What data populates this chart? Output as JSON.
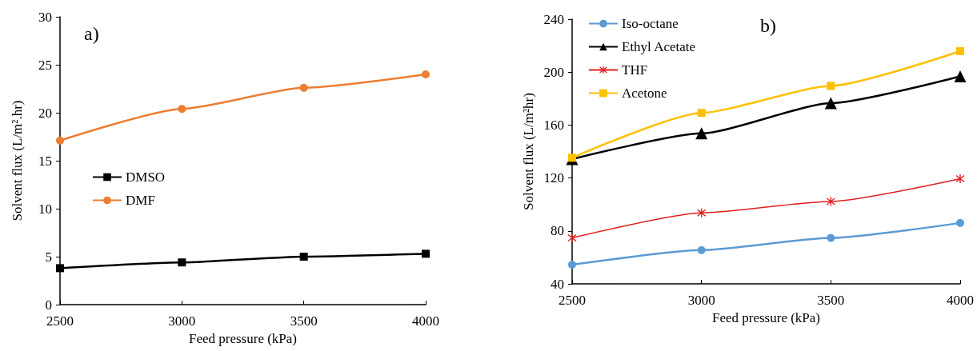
{
  "chart_data": [
    {
      "type": "line",
      "xlabel": "Feed pressure (kPa)",
      "ylabel": "Solvent flux (L/m².hr)",
      "annotations": [
        "a)"
      ],
      "x": [
        2500,
        3000,
        3500,
        4000
      ],
      "xlim": [
        2500,
        4000
      ],
      "xticks": [
        2500,
        3000,
        3500,
        4000
      ],
      "ylim": [
        0,
        30
      ],
      "yticks": [
        0,
        5,
        10,
        15,
        20,
        25,
        30
      ],
      "grid": false,
      "legend": "left",
      "series": [
        {
          "name": "DMSO",
          "color": "#000000",
          "marker": "square",
          "values": [
            3.8,
            4.4,
            5.0,
            5.3
          ]
        },
        {
          "name": "DMF",
          "color": "#ed7d31",
          "marker": "circle",
          "values": [
            17.1,
            20.4,
            22.6,
            24.0
          ]
        }
      ]
    },
    {
      "type": "line",
      "xlabel": "Feed pressure (kPa)",
      "ylabel": "Solvent flux (L/m²hr)",
      "annotations": [
        "b)"
      ],
      "x": [
        2500,
        3000,
        3500,
        4000
      ],
      "xlim": [
        2500,
        4000
      ],
      "xticks": [
        2500,
        3000,
        3500,
        4000
      ],
      "ylim": [
        40,
        240
      ],
      "yticks": [
        40,
        80,
        120,
        160,
        200,
        240
      ],
      "grid": false,
      "legend": "top left",
      "series": [
        {
          "name": "Iso-octane",
          "color": "#5b9bd5",
          "marker": "circle",
          "values": [
            54.5,
            65.5,
            74.7,
            86.0
          ]
        },
        {
          "name": "Ethyl Acetate",
          "color": "#000000",
          "marker": "triangle",
          "values": [
            134.3,
            153.7,
            176.5,
            196.8
          ]
        },
        {
          "name": "THF",
          "color": "#e02020",
          "marker": "cross",
          "values": [
            74.7,
            93.6,
            102.3,
            119.5
          ]
        },
        {
          "name": "Acetone",
          "color": "#ffc000",
          "marker": "square",
          "values": [
            135.3,
            169.2,
            189.6,
            215.8
          ]
        }
      ]
    }
  ]
}
